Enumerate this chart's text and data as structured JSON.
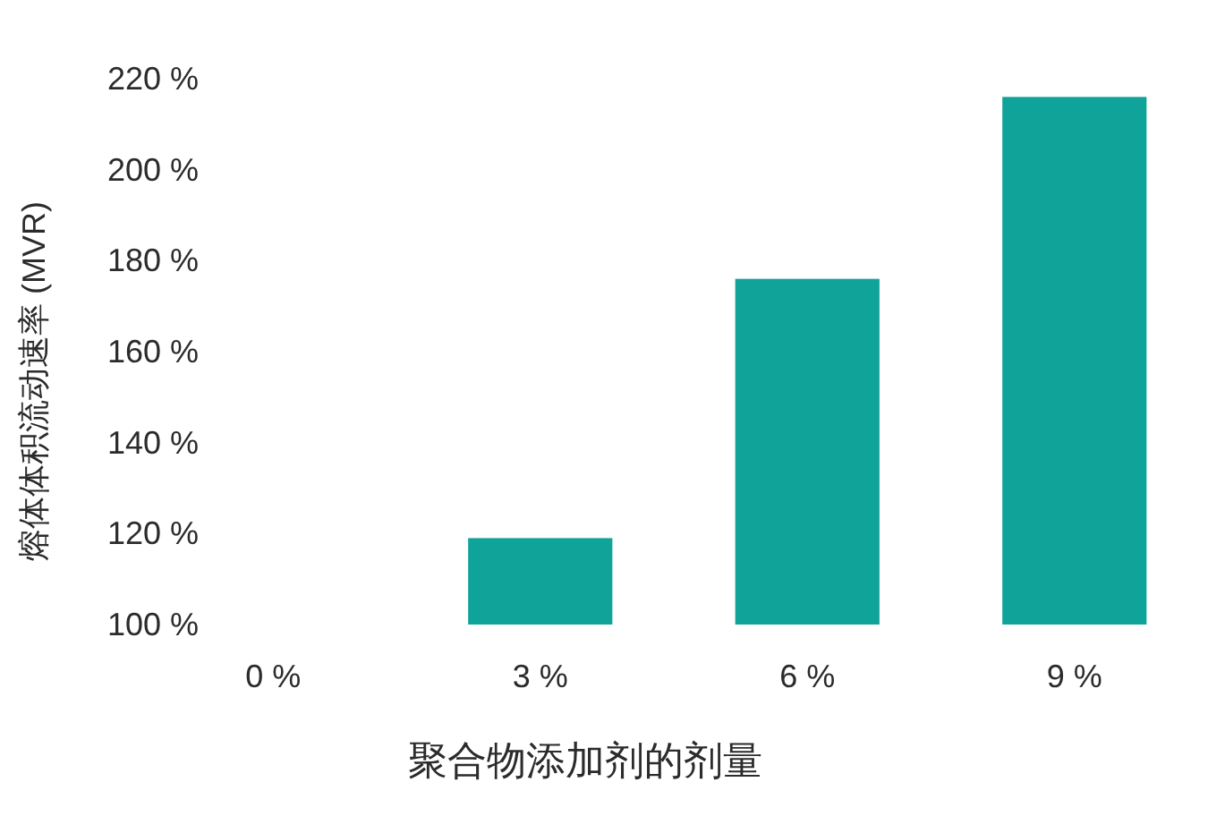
{
  "chart_data": {
    "type": "bar",
    "xlabel": "聚合物添加剂的剂量",
    "ylabel": "熔体体积流动速率 (MVR)",
    "categories": [
      "0 %",
      "3 %",
      "6 %",
      "9 %"
    ],
    "values": [
      null,
      119,
      176,
      216
    ],
    "color": "#10a39a",
    "ylim": [
      100,
      220
    ],
    "yticks": [
      {
        "value": 100,
        "label": "100 %"
      },
      {
        "value": 120,
        "label": "120 %"
      },
      {
        "value": 140,
        "label": "140 %"
      },
      {
        "value": 160,
        "label": "160 %"
      },
      {
        "value": 180,
        "label": "180 %"
      },
      {
        "value": 200,
        "label": "200 %"
      },
      {
        "value": 220,
        "label": "220 %"
      }
    ]
  }
}
